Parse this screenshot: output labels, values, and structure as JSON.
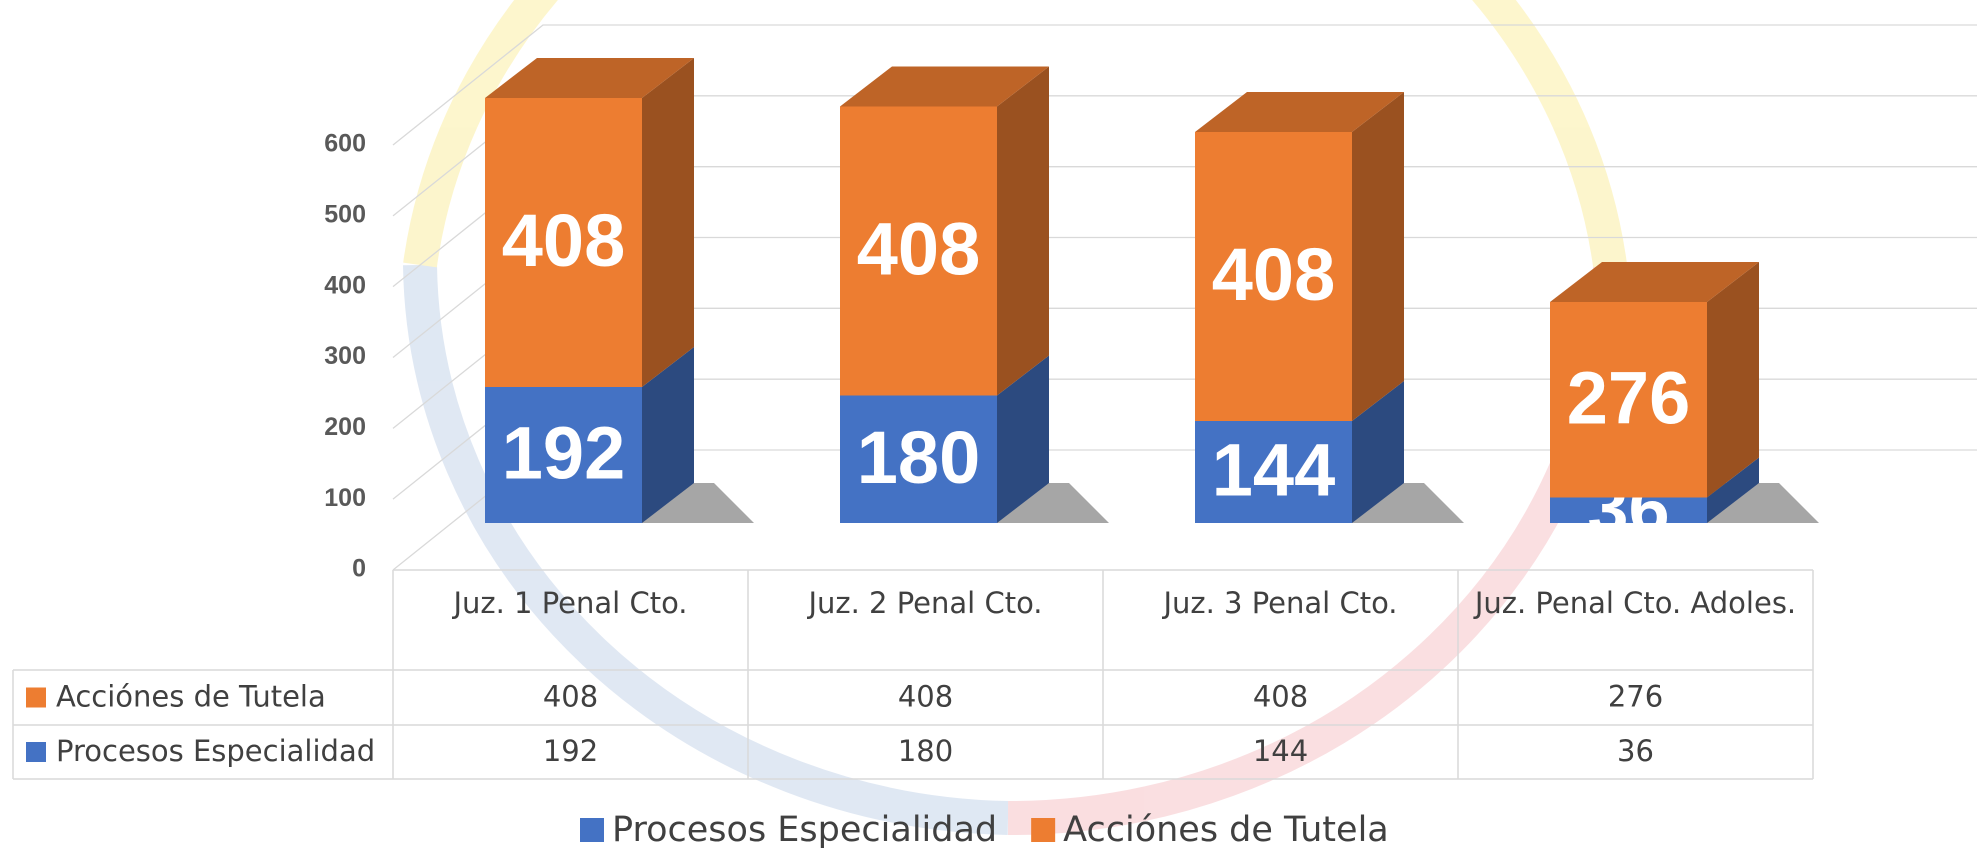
{
  "chart_data": {
    "type": "bar3d_stacked",
    "categories": [
      "Juz. 1 Penal Cto.",
      "Juz. 2 Penal Cto.",
      "Juz. 3 Penal Cto.",
      "Juz. Penal Cto. Adoles."
    ],
    "series": [
      {
        "name": "Procesos Especialidad",
        "color": "#4472c4",
        "values": [
          192,
          180,
          144,
          36
        ]
      },
      {
        "name": "Acciónes de Tutela",
        "color": "#ed7d31",
        "values": [
          408,
          408,
          408,
          276
        ]
      }
    ],
    "ylim": [
      0,
      600
    ],
    "yticks": [
      0,
      100,
      200,
      300,
      400,
      500,
      600
    ],
    "grid": true,
    "legend": "bottom",
    "data_table": true
  }
}
